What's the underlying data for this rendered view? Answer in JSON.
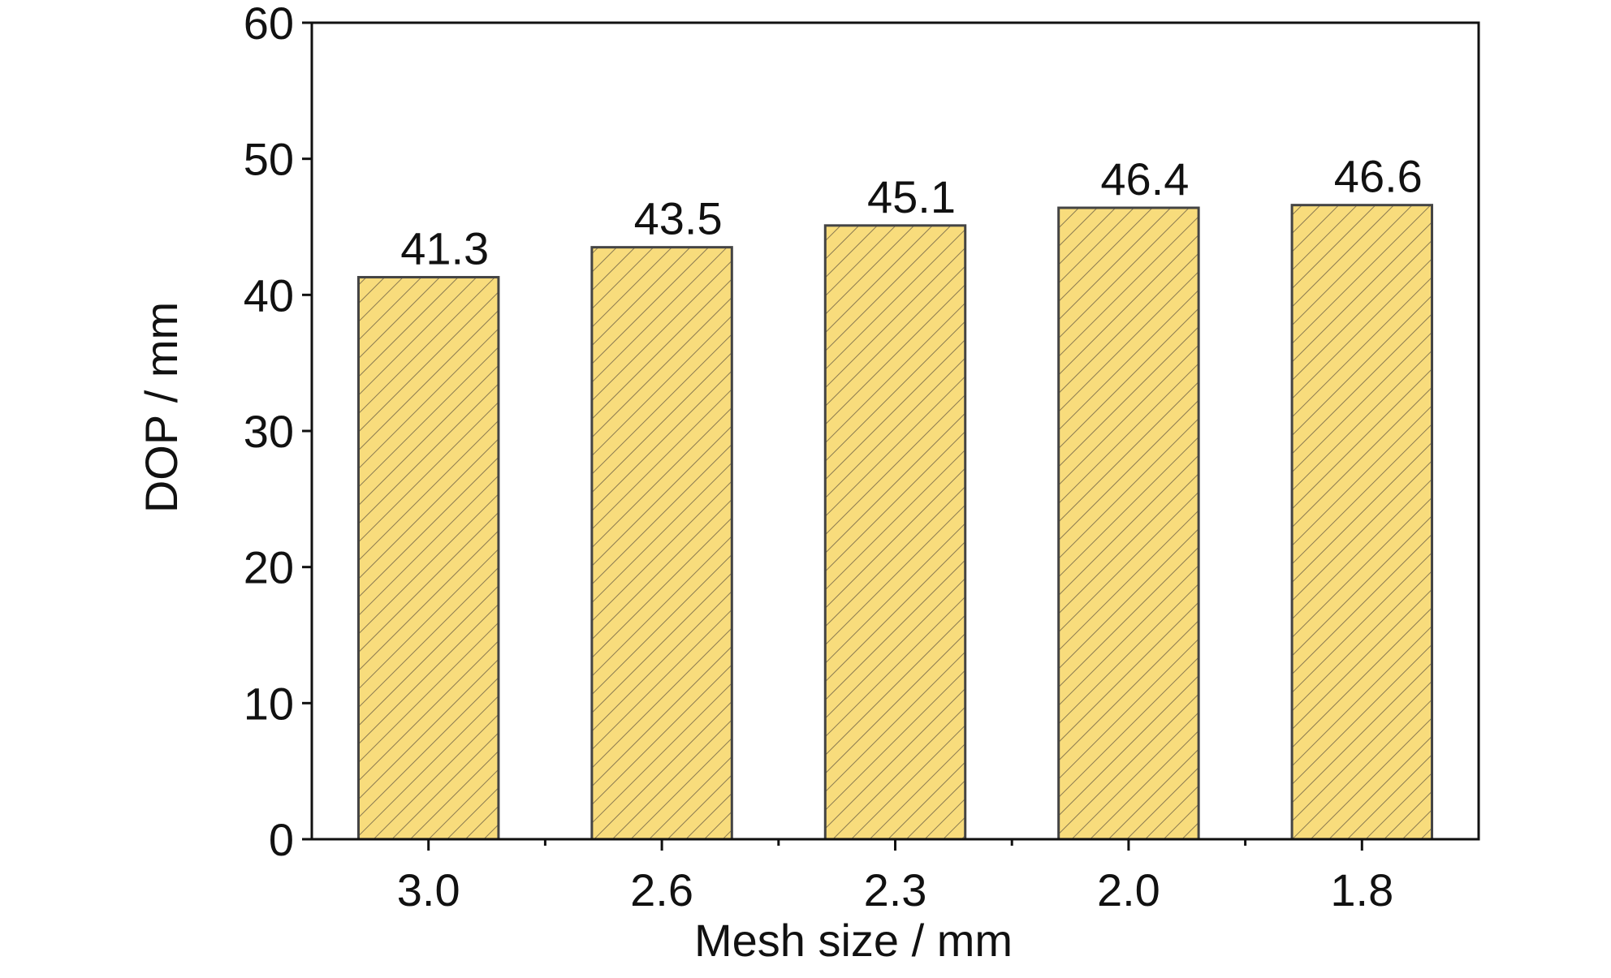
{
  "chart_data": {
    "type": "bar",
    "x_label": "Mesh size / mm",
    "y_label": "DOP / mm",
    "categories": [
      "3.0",
      "2.6",
      "2.3",
      "2.0",
      "1.8"
    ],
    "values": [
      41.3,
      43.5,
      45.1,
      46.4,
      46.6
    ],
    "color": "#f8dc7c",
    "edge_color": "#444444",
    "ylim": [
      0,
      60
    ],
    "yticks": [
      0,
      10,
      20,
      30,
      40,
      50,
      60
    ]
  }
}
